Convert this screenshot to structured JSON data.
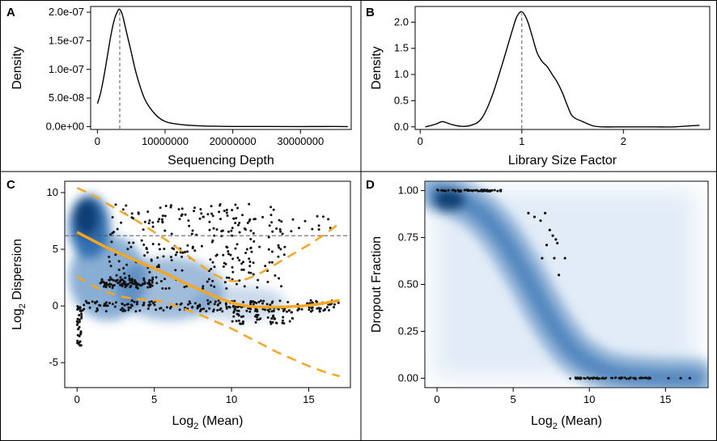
{
  "chart_data": [
    {
      "panel": "A",
      "type": "line",
      "xlabel": "Sequencing Depth",
      "ylabel": "Density",
      "xticks": [
        0,
        10000000,
        20000000,
        30000000
      ],
      "xtick_labels": [
        "0",
        "10000000",
        "20000000",
        "30000000"
      ],
      "yticks": [
        0,
        5e-08,
        1e-07,
        1.5e-07,
        2e-07
      ],
      "ytick_labels": [
        "0.0e+00",
        "5.0e-08",
        "1.0e-07",
        "1.5e-07",
        "2.0e-07"
      ],
      "xlim": [
        -1000000,
        37500000
      ],
      "ylim": [
        -5e-09,
        2.1e-07
      ],
      "mode_x": 3300000,
      "x": [
        0,
        500000,
        1000000,
        1500000,
        2000000,
        2500000,
        3000000,
        3300000,
        3700000,
        4200000,
        5000000,
        5800000,
        7000000,
        8500000,
        10000000,
        12000000,
        14000000,
        16000000,
        18000000,
        20000000,
        25000000,
        30000000,
        35000000,
        37000000
      ],
      "y": [
        4e-08,
        6e-08,
        9e-08,
        1.25e-07,
        1.6e-07,
        1.87e-07,
        2.02e-07,
        2.05e-07,
        1.95e-07,
        1.7e-07,
        1.3e-07,
        9e-08,
        4.8e-08,
        2.2e-08,
        9e-09,
        4e-09,
        2e-09,
        1e-09,
        5e-10,
        3e-10,
        2e-10,
        1e-10,
        2e-10,
        0
      ]
    },
    {
      "panel": "B",
      "type": "line",
      "xlabel": "Library Size Factor",
      "ylabel": "Density",
      "xticks": [
        0,
        1,
        2
      ],
      "xtick_labels": [
        "0",
        "1",
        "2"
      ],
      "yticks": [
        0,
        0.5,
        1,
        1.5,
        2
      ],
      "ytick_labels": [
        "0.0",
        "0.5",
        "1.0",
        "1.5",
        "2.0"
      ],
      "xlim": [
        -0.05,
        2.85
      ],
      "ylim": [
        -0.05,
        2.3
      ],
      "mode_x": 1.0,
      "x": [
        0.05,
        0.15,
        0.22,
        0.3,
        0.4,
        0.5,
        0.6,
        0.7,
        0.8,
        0.9,
        0.95,
        1.0,
        1.05,
        1.1,
        1.15,
        1.2,
        1.25,
        1.3,
        1.35,
        1.4,
        1.45,
        1.5,
        1.6,
        1.7,
        1.8,
        2.0,
        2.3,
        2.5,
        2.75
      ],
      "y": [
        0.0,
        0.05,
        0.1,
        0.05,
        0.01,
        0.03,
        0.15,
        0.55,
        1.15,
        1.8,
        2.1,
        2.2,
        2.05,
        1.75,
        1.42,
        1.25,
        1.15,
        1.0,
        0.85,
        0.65,
        0.4,
        0.2,
        0.1,
        0.02,
        0.0,
        0.0,
        0.0,
        0.0,
        0.03
      ]
    },
    {
      "panel": "C",
      "type": "scatter",
      "xlabel": "Log2 (Mean)",
      "xlabel_base": "Log",
      "xlabel_sub": "2",
      "xlabel_rest": " (Mean)",
      "ylabel": "Log2 Dispersion",
      "ylabel_base": "Log",
      "ylabel_sub": "2",
      "ylabel_rest": " Dispersion",
      "xticks": [
        0,
        5,
        10,
        15
      ],
      "xtick_labels": [
        "0",
        "5",
        "10",
        "15"
      ],
      "yticks": [
        -5,
        0,
        5,
        10
      ],
      "ytick_labels": [
        "-5",
        "0",
        "5",
        "10"
      ],
      "xlim": [
        -0.8,
        17.7
      ],
      "ylim": [
        -7.2,
        11.0
      ],
      "hline_y": 6.2,
      "fit_x": [
        0,
        1,
        2,
        3,
        4,
        5,
        6,
        7,
        8,
        9,
        10,
        11,
        12,
        13,
        14,
        15,
        16,
        17
      ],
      "fit_y": [
        6.5,
        5.8,
        5.1,
        4.5,
        3.9,
        3.3,
        2.7,
        2.0,
        1.4,
        0.8,
        0.3,
        0.0,
        -0.1,
        -0.1,
        -0.05,
        0.05,
        0.25,
        0.5
      ],
      "upper_y": [
        10.4,
        9.8,
        9.0,
        8.2,
        7.4,
        6.5,
        5.6,
        4.6,
        3.6,
        2.7,
        2.2,
        2.4,
        3.0,
        3.8,
        4.6,
        5.4,
        6.3,
        7.3
      ],
      "lower_y": [
        2.6,
        1.8,
        1.2,
        0.8,
        0.6,
        0.5,
        0.2,
        -0.3,
        -0.8,
        -1.4,
        -2.0,
        -2.7,
        -3.4,
        -4.1,
        -4.7,
        -5.3,
        -5.8,
        -6.2
      ],
      "density_zones": [
        {
          "x": [
            0,
            1.6
          ],
          "y": [
            4.5,
            9.5
          ],
          "strength": 0.95
        },
        {
          "x": [
            0,
            4
          ],
          "y": [
            -1,
            6
          ],
          "strength": 0.55
        },
        {
          "x": [
            3,
            9
          ],
          "y": [
            -1,
            4
          ],
          "strength": 0.45
        },
        {
          "x": [
            8,
            13
          ],
          "y": [
            -1,
            1.5
          ],
          "strength": 0.25
        }
      ],
      "point_clusters": [
        {
          "x": [
            2,
            13.5
          ],
          "y": [
            1.5,
            9
          ],
          "n": 260
        },
        {
          "x": [
            0,
            17
          ],
          "y": [
            -0.5,
            0.5
          ],
          "n": 220
        },
        {
          "x": [
            1.5,
            5
          ],
          "y": [
            1.6,
            2.4
          ],
          "n": 90
        },
        {
          "x": [
            0,
            0.3
          ],
          "y": [
            -3.5,
            0
          ],
          "n": 30
        },
        {
          "x": [
            9,
            17
          ],
          "y": [
            6.5,
            8
          ],
          "n": 20
        },
        {
          "x": [
            10,
            14
          ],
          "y": [
            -1.6,
            -0.2
          ],
          "n": 60
        }
      ],
      "color_fit": "#F5A623",
      "color_density": "#2B6CB0"
    },
    {
      "panel": "D",
      "type": "scatter",
      "xlabel": "Log2 (Mean)",
      "xlabel_base": "Log",
      "xlabel_sub": "2",
      "xlabel_rest": " (Mean)",
      "ylabel": "Dropout Fraction",
      "xticks": [
        0,
        5,
        10,
        15
      ],
      "xtick_labels": [
        "0",
        "5",
        "10",
        "15"
      ],
      "yticks": [
        0,
        0.25,
        0.5,
        0.75,
        1
      ],
      "ytick_labels": [
        "0.00",
        "0.25",
        "0.50",
        "0.75",
        "1.00"
      ],
      "xlim": [
        -0.8,
        17.8
      ],
      "ylim": [
        -0.05,
        1.05
      ],
      "density_curve_x": [
        0,
        1,
        2,
        3,
        4,
        5,
        6,
        7,
        8,
        9,
        10,
        11,
        12,
        13,
        14,
        15,
        16,
        17
      ],
      "density_curve_y": [
        0.99,
        0.97,
        0.93,
        0.87,
        0.78,
        0.66,
        0.52,
        0.37,
        0.24,
        0.14,
        0.08,
        0.04,
        0.02,
        0.01,
        0.005,
        0.0,
        0.0,
        0.0
      ],
      "points": [
        [
          6.0,
          0.88
        ],
        [
          6.4,
          0.86
        ],
        [
          6.8,
          0.84
        ],
        [
          7.1,
          0.88
        ],
        [
          7.4,
          0.79
        ],
        [
          7.6,
          0.76
        ],
        [
          7.8,
          0.74
        ],
        [
          7.9,
          0.72
        ],
        [
          7.2,
          0.71
        ],
        [
          6.9,
          0.64
        ],
        [
          7.7,
          0.64
        ],
        [
          8.4,
          0.64
        ],
        [
          8.0,
          0.55
        ]
      ],
      "bottom_points_x": [
        10.5,
        12.0,
        13.0,
        14.0,
        15.2,
        16.0,
        16.6
      ],
      "color_density": "#2B6CB0"
    }
  ]
}
